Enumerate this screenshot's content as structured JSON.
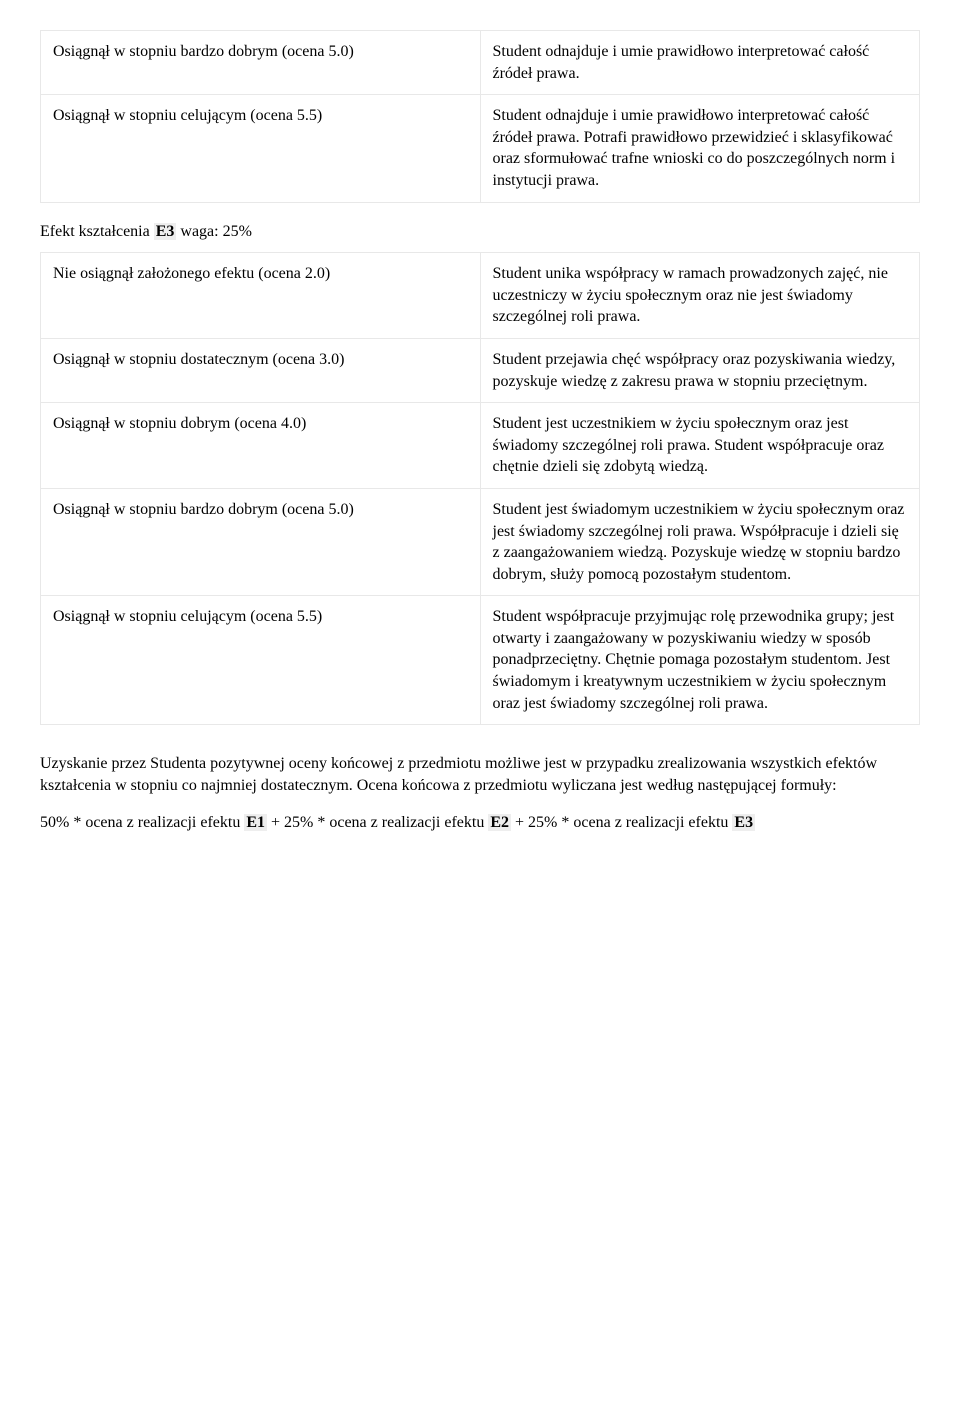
{
  "table1": {
    "rows": [
      {
        "left": "Osiągnął w stopniu bardzo dobrym (ocena 5.0)",
        "right": "Student odnajduje i umie prawidłowo interpretować całość źródeł prawa."
      },
      {
        "left": "Osiągnął w stopniu celującym (ocena 5.5)",
        "right": "Student odnajduje i umie prawidłowo interpretować całość źródeł prawa. Potrafi prawidłowo przewidzieć i sklasyfikować oraz sformułować trafne wnioski co do poszczególnych norm i instytucji prawa."
      }
    ]
  },
  "section_header": {
    "prefix": "Efekt kształcenia ",
    "code": "E3",
    "suffix": " waga: 25%"
  },
  "table2": {
    "rows": [
      {
        "left": "Nie osiągnął założonego efektu (ocena 2.0)",
        "right": "Student unika współpracy w ramach prowadzonych zajęć, nie uczestniczy w życiu społecznym oraz nie jest świadomy szczególnej roli prawa."
      },
      {
        "left": "Osiągnął w stopniu dostatecznym (ocena 3.0)",
        "right": "Student przejawia chęć współpracy oraz pozyskiwania wiedzy, pozyskuje wiedzę z zakresu prawa w stopniu przeciętnym."
      },
      {
        "left": "Osiągnął w stopniu dobrym (ocena 4.0)",
        "right": "Student jest uczestnikiem w życiu społecznym oraz jest świadomy szczególnej roli prawa. Student współpracuje oraz chętnie dzieli się zdobytą wiedzą."
      },
      {
        "left": "Osiągnął w stopniu bardzo dobrym (ocena 5.0)",
        "right": "Student jest świadomym uczestnikiem w życiu społecznym oraz jest świadomy szczególnej roli prawa. Współpracuje i dzieli się z zaangażowaniem wiedzą. Pozyskuje wiedzę w stopniu bardzo dobrym, służy pomocą pozostałym studentom."
      },
      {
        "left": "Osiągnął w stopniu celującym (ocena 5.5)",
        "right": "Student współpracuje przyjmując rolę przewodnika grupy; jest otwarty i zaangażowany w pozyskiwaniu wiedzy w sposób ponadprzeciętny. Chętnie pomaga pozostałym studentom. Jest świadomym i kreatywnym uczestnikiem w życiu społecznym oraz jest świadomy szczególnej roli prawa."
      }
    ]
  },
  "closing_paragraph": "Uzyskanie przez Studenta pozytywnej oceny końcowej z przedmiotu możliwe jest w przypadku zrealizowania wszystkich efektów kształcenia w stopniu co najmniej dostatecznym. Ocena końcowa z przedmiotu wyliczana jest według następującej formuły:",
  "formula": {
    "p1": "50% * ocena z realizacji efektu ",
    "e1": "E1",
    "p2": " + 25% * ocena z realizacji efektu ",
    "e2": "E2",
    "p3": " + 25% * ocena z realizacji efektu ",
    "e3": "E3"
  }
}
